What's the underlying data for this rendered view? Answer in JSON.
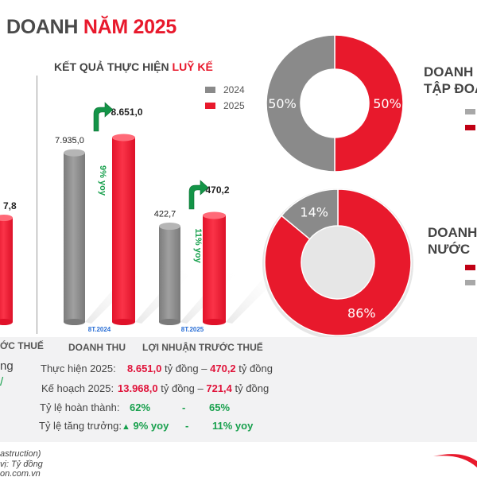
{
  "header": {
    "title_part1": "DOANH",
    "title_part2": "NĂM 2025",
    "subtitle_part1": "KẾT QUẢ THỰC HIỆN",
    "subtitle_part2": "LUỸ KẾ"
  },
  "colors": {
    "red": "#e8192c",
    "gray": "#8a8a8a",
    "green": "#18a04d",
    "blue": "#2a6fd6"
  },
  "chart_data": [
    {
      "type": "bar",
      "title": "KẾT QUẢ THỰC HIỆN LUỸ KẾ",
      "categories": [
        "DOANH THU",
        "LỢI NHUẬN TRƯỚC THUẾ"
      ],
      "period_labels": [
        "8T.2024",
        "8T.2025"
      ],
      "series": [
        {
          "name": "2024",
          "values": [
            7935.0,
            422.7
          ],
          "labels": [
            "7.935,0",
            "422,7"
          ],
          "color": "#8a8a8a"
        },
        {
          "name": "2025",
          "values": [
            8651.0,
            470.2
          ],
          "labels": [
            "8.651,0",
            "470,2"
          ],
          "color": "#e8192c"
        }
      ],
      "growth_annotations": [
        "9% yoy",
        "11% yoy"
      ],
      "legend": [
        "2024",
        "2025"
      ],
      "legend_position": "top-right",
      "partial_left_bar_label": "7,8"
    },
    {
      "type": "pie",
      "title_lines": [
        "DOANH T",
        "TẬP ĐOÀ"
      ],
      "slices": [
        {
          "label": "50%",
          "value": 50,
          "color": "#8a8a8a"
        },
        {
          "label": "50%",
          "value": 50,
          "color": "#e8192c"
        }
      ]
    },
    {
      "type": "pie",
      "title_lines": [
        "DOANH",
        "NƯỚC"
      ],
      "slices": [
        {
          "label": "86%",
          "value": 86,
          "color": "#e8192c"
        },
        {
          "label": "14%",
          "value": 14,
          "color": "#8a8a8a"
        }
      ]
    }
  ],
  "summary": {
    "left_partial_header": "ỚC THUẾ",
    "left_partial_text": "ng",
    "col_headers": [
      "DOANH THU",
      "LỢI NHUẬN TRƯỚC THUẾ"
    ],
    "rows": [
      {
        "label": "Thực hiện 2025:",
        "v1": "8.651,0",
        "u1": "tỷ đồng –",
        "v2": "470,2",
        "u2": "tỷ đồng"
      },
      {
        "label": "Kế hoạch 2025:",
        "v1": "13.968,0",
        "u1": "tỷ đồng –",
        "v2": "721,4",
        "u2": "tỷ đồng"
      },
      {
        "label": "Tỷ lệ hoàn thành:",
        "v1": "62%",
        "sep": "-",
        "v2": "65%"
      },
      {
        "label": "Tỷ lệ tăng trưởng:",
        "v1": "9% yoy",
        "sep": "-",
        "v2": "11% yoy"
      }
    ]
  },
  "footer": {
    "line1": "astruction)",
    "line2": "vị: Tỷ đồng",
    "line3": "on.com.vn"
  }
}
